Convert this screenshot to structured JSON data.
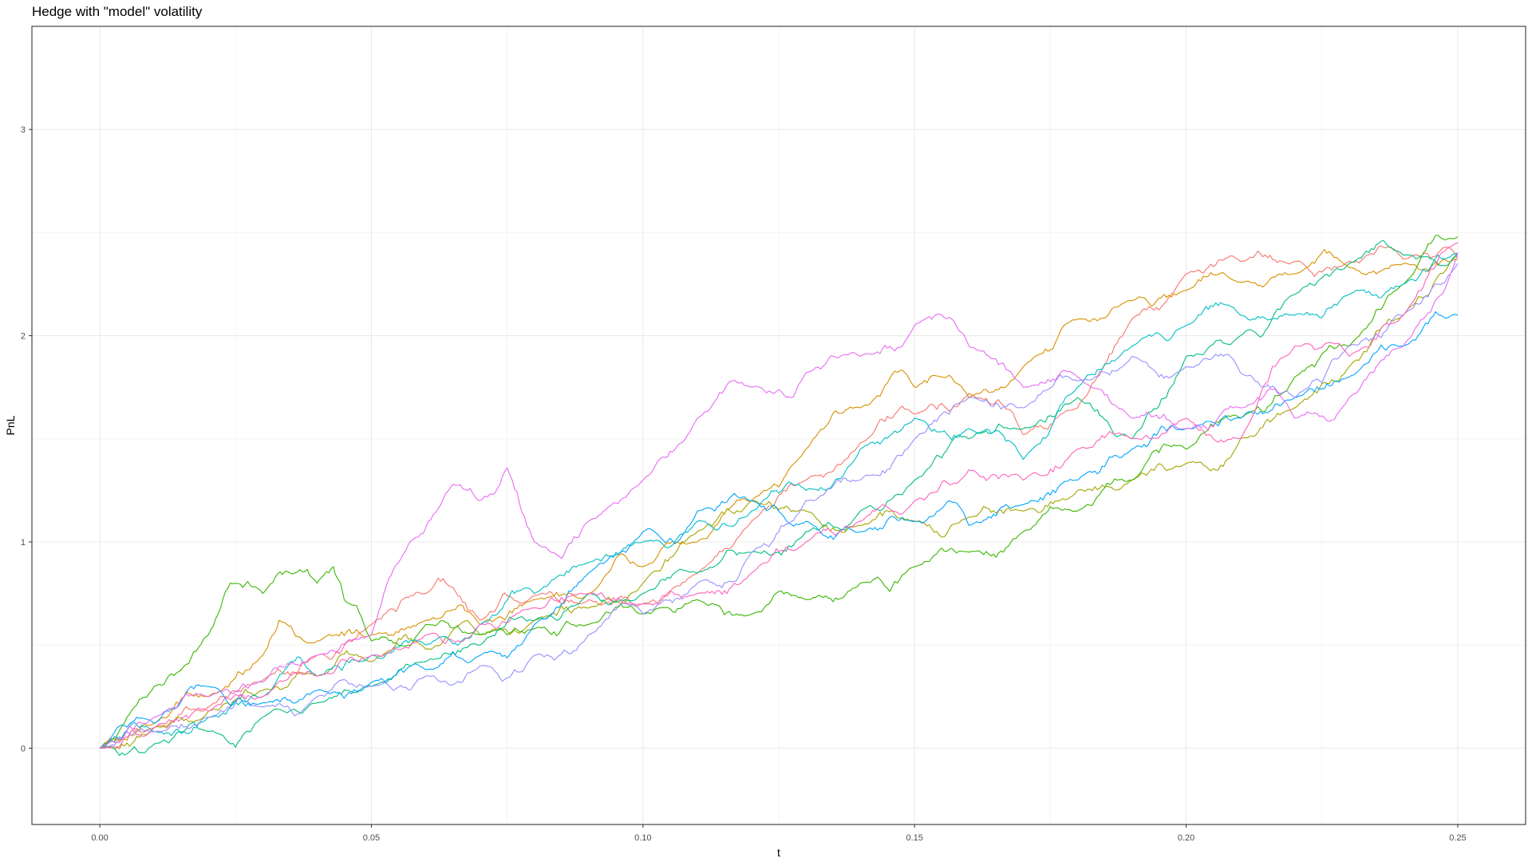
{
  "chart_data": {
    "type": "line",
    "title": "Hedge with \"model\" volatility",
    "xlabel": "t",
    "ylabel": "PnL",
    "xlim": [
      -0.0125,
      0.2625
    ],
    "ylim": [
      -0.37,
      3.5
    ],
    "x_ticks": [
      0.0,
      0.05,
      0.1,
      0.15,
      0.2,
      0.25
    ],
    "x_tick_labels": [
      "0.00",
      "0.05",
      "0.10",
      "0.15",
      "0.20",
      "0.25"
    ],
    "y_ticks": [
      0,
      1,
      2,
      3
    ],
    "y_tick_labels": [
      "0",
      "1",
      "2",
      "3"
    ],
    "grid": true,
    "legend": "none",
    "series": [
      {
        "color": "#F8766D",
        "x": [
          0,
          0.01,
          0.02,
          0.03,
          0.04,
          0.05,
          0.06,
          0.065,
          0.07,
          0.08,
          0.09,
          0.1,
          0.11,
          0.12,
          0.13,
          0.14,
          0.15,
          0.16,
          0.17,
          0.18,
          0.19,
          0.2,
          0.21,
          0.22,
          0.23,
          0.24,
          0.25
        ],
        "y": [
          0,
          0.1,
          0.2,
          0.33,
          0.45,
          0.6,
          0.75,
          0.78,
          0.62,
          0.74,
          0.72,
          0.7,
          0.85,
          1.1,
          1.3,
          1.48,
          1.62,
          1.72,
          1.52,
          1.65,
          2.08,
          2.3,
          2.36,
          2.36,
          2.36,
          2.37,
          2.38
        ]
      },
      {
        "color": "#D89000",
        "x": [
          0,
          0.01,
          0.02,
          0.03,
          0.033,
          0.04,
          0.05,
          0.06,
          0.07,
          0.08,
          0.09,
          0.1,
          0.11,
          0.12,
          0.13,
          0.14,
          0.15,
          0.155,
          0.16,
          0.17,
          0.18,
          0.19,
          0.2,
          0.21,
          0.22,
          0.23,
          0.24,
          0.25
        ],
        "y": [
          0,
          0.12,
          0.25,
          0.45,
          0.62,
          0.52,
          0.55,
          0.62,
          0.6,
          0.72,
          0.75,
          0.88,
          1.0,
          1.2,
          1.45,
          1.65,
          1.75,
          1.8,
          1.7,
          1.85,
          2.08,
          2.17,
          2.22,
          2.26,
          2.3,
          2.33,
          2.35,
          2.37
        ]
      },
      {
        "color": "#A3A500",
        "x": [
          0,
          0.01,
          0.02,
          0.03,
          0.04,
          0.05,
          0.06,
          0.07,
          0.08,
          0.09,
          0.1,
          0.11,
          0.12,
          0.13,
          0.14,
          0.15,
          0.16,
          0.17,
          0.18,
          0.19,
          0.2,
          0.21,
          0.22,
          0.23,
          0.24,
          0.25
        ],
        "y": [
          0,
          0.1,
          0.18,
          0.28,
          0.35,
          0.42,
          0.48,
          0.55,
          0.62,
          0.68,
          0.8,
          1.05,
          1.2,
          1.15,
          1.08,
          1.1,
          1.12,
          1.15,
          1.25,
          1.3,
          1.38,
          1.5,
          1.65,
          1.85,
          2.1,
          2.4
        ]
      },
      {
        "color": "#39B600",
        "x": [
          0,
          0.005,
          0.01,
          0.015,
          0.02,
          0.024,
          0.03,
          0.035,
          0.04,
          0.043,
          0.045,
          0.05,
          0.06,
          0.07,
          0.08,
          0.09,
          0.1,
          0.11,
          0.12,
          0.13,
          0.14,
          0.15,
          0.16,
          0.17,
          0.18,
          0.19,
          0.2,
          0.21,
          0.22,
          0.23,
          0.24,
          0.25
        ],
        "y": [
          0,
          0.15,
          0.3,
          0.38,
          0.55,
          0.8,
          0.75,
          0.85,
          0.8,
          0.88,
          0.72,
          0.52,
          0.6,
          0.55,
          0.58,
          0.6,
          0.65,
          0.72,
          0.65,
          0.72,
          0.8,
          0.88,
          0.95,
          1.05,
          1.15,
          1.3,
          1.45,
          1.6,
          1.8,
          1.95,
          2.25,
          2.48
        ]
      },
      {
        "color": "#00BF7D",
        "x": [
          0,
          0.01,
          0.02,
          0.03,
          0.04,
          0.05,
          0.06,
          0.07,
          0.08,
          0.09,
          0.1,
          0.11,
          0.12,
          0.13,
          0.14,
          0.15,
          0.16,
          0.17,
          0.18,
          0.19,
          0.2,
          0.21,
          0.22,
          0.23,
          0.24,
          0.25
        ],
        "y": [
          0,
          0.02,
          0.08,
          0.15,
          0.22,
          0.3,
          0.42,
          0.5,
          0.62,
          0.75,
          0.75,
          0.85,
          0.95,
          1.05,
          1.15,
          1.3,
          1.5,
          1.55,
          1.7,
          1.5,
          1.9,
          2.0,
          2.2,
          2.35,
          2.39,
          2.4
        ]
      },
      {
        "color": "#00BFC4",
        "x": [
          0,
          0.01,
          0.02,
          0.03,
          0.04,
          0.05,
          0.06,
          0.07,
          0.08,
          0.09,
          0.1,
          0.11,
          0.12,
          0.13,
          0.14,
          0.15,
          0.16,
          0.17,
          0.18,
          0.19,
          0.2,
          0.21,
          0.22,
          0.23,
          0.24,
          0.25
        ],
        "y": [
          0,
          0.08,
          0.15,
          0.25,
          0.35,
          0.45,
          0.5,
          0.6,
          0.75,
          0.9,
          1.0,
          1.1,
          1.15,
          1.25,
          1.45,
          1.6,
          1.55,
          1.4,
          1.75,
          1.95,
          2.05,
          2.1,
          2.1,
          2.2,
          2.25,
          2.4
        ]
      },
      {
        "color": "#00A5FF",
        "x": [
          0,
          0.01,
          0.02,
          0.03,
          0.04,
          0.05,
          0.06,
          0.07,
          0.08,
          0.09,
          0.1,
          0.11,
          0.12,
          0.13,
          0.14,
          0.15,
          0.16,
          0.17,
          0.18,
          0.19,
          0.2,
          0.21,
          0.22,
          0.23,
          0.24,
          0.25
        ],
        "y": [
          0,
          0.12,
          0.3,
          0.22,
          0.28,
          0.32,
          0.38,
          0.45,
          0.6,
          0.85,
          1.05,
          1.15,
          1.2,
          1.1,
          1.05,
          1.1,
          1.08,
          1.18,
          1.3,
          1.45,
          1.55,
          1.6,
          1.7,
          1.8,
          1.95,
          2.1
        ]
      },
      {
        "color": "#9590FF",
        "x": [
          0,
          0.01,
          0.02,
          0.03,
          0.04,
          0.05,
          0.06,
          0.07,
          0.08,
          0.09,
          0.1,
          0.11,
          0.12,
          0.13,
          0.14,
          0.15,
          0.16,
          0.17,
          0.18,
          0.19,
          0.2,
          0.21,
          0.22,
          0.23,
          0.24,
          0.25
        ],
        "y": [
          0,
          0.08,
          0.15,
          0.2,
          0.25,
          0.3,
          0.35,
          0.4,
          0.45,
          0.55,
          0.65,
          0.8,
          0.95,
          1.2,
          1.3,
          1.5,
          1.7,
          1.65,
          1.78,
          1.9,
          1.85,
          1.82,
          1.7,
          1.95,
          2.1,
          2.35
        ]
      },
      {
        "color": "#E76BF3",
        "x": [
          0,
          0.01,
          0.02,
          0.03,
          0.04,
          0.05,
          0.055,
          0.065,
          0.07,
          0.075,
          0.08,
          0.085,
          0.09,
          0.1,
          0.11,
          0.12,
          0.13,
          0.14,
          0.15,
          0.155,
          0.16,
          0.17,
          0.18,
          0.19,
          0.2,
          0.21,
          0.22,
          0.23,
          0.24,
          0.25
        ],
        "y": [
          0,
          0.15,
          0.25,
          0.32,
          0.45,
          0.55,
          0.9,
          1.28,
          1.2,
          1.36,
          1.0,
          0.92,
          1.1,
          1.3,
          1.6,
          1.75,
          1.82,
          1.9,
          2.05,
          2.1,
          1.95,
          1.75,
          1.8,
          1.6,
          1.55,
          1.65,
          1.6,
          1.7,
          1.95,
          2.4
        ]
      },
      {
        "color": "#FF62BC",
        "x": [
          0,
          0.01,
          0.02,
          0.03,
          0.04,
          0.05,
          0.06,
          0.07,
          0.08,
          0.09,
          0.1,
          0.11,
          0.12,
          0.13,
          0.14,
          0.15,
          0.16,
          0.17,
          0.18,
          0.19,
          0.2,
          0.21,
          0.22,
          0.23,
          0.24,
          0.25
        ],
        "y": [
          0,
          0.1,
          0.18,
          0.25,
          0.35,
          0.45,
          0.55,
          0.6,
          0.68,
          0.75,
          0.7,
          0.75,
          0.85,
          1.0,
          1.1,
          1.2,
          1.35,
          1.3,
          1.45,
          1.5,
          1.6,
          1.5,
          1.95,
          1.9,
          2.1,
          2.45
        ]
      }
    ]
  }
}
